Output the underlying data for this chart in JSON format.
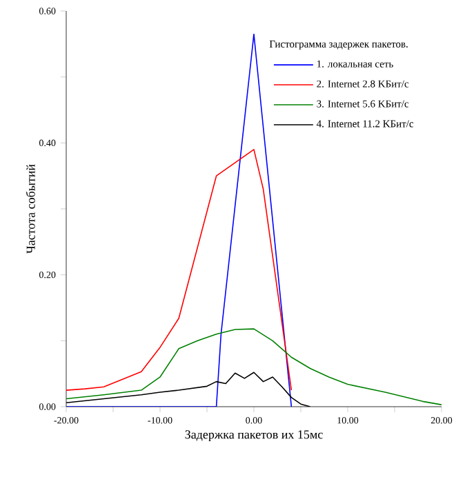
{
  "chart_data": {
    "type": "line",
    "xlabel": "Задержка пакетов их 15мс",
    "ylabel": "Частота событий",
    "legend_title": "Гистограмма задержек пакетов.",
    "legend": "top right",
    "grid": false,
    "marker": "none",
    "line_style": "solid",
    "xlim": [
      -20,
      20
    ],
    "xticks": [
      {
        "value": -20,
        "label": "-20.00"
      },
      {
        "value": -15,
        "label": null
      },
      {
        "value": -10,
        "label": "-10.00"
      },
      {
        "value": -5,
        "label": null
      },
      {
        "value": 0,
        "label": "0.00"
      },
      {
        "value": 5,
        "label": null
      },
      {
        "value": 10,
        "label": "10.00"
      },
      {
        "value": 15,
        "label": null
      },
      {
        "value": 20,
        "label": "20.00"
      }
    ],
    "ylim": [
      0,
      0.6
    ],
    "yticks": [
      {
        "value": 0,
        "label": "0.00"
      },
      {
        "value": 0.1,
        "label": null
      },
      {
        "value": 0.2,
        "label": "0.20"
      },
      {
        "value": 0.3,
        "label": null
      },
      {
        "value": 0.4,
        "label": "0.40"
      },
      {
        "value": 0.5,
        "label": null
      },
      {
        "value": 0.6,
        "label": "0.60"
      }
    ],
    "series": [
      {
        "name": "1. локальная сеть",
        "color": "#0000ff",
        "x": [
          -20,
          -4,
          -3.5,
          0,
          4
        ],
        "values": [
          0,
          0,
          0.11,
          0.565,
          0
        ]
      },
      {
        "name": "2. Internet 2.8 KБит/с",
        "color": "#ff0000",
        "x": [
          -20,
          -18,
          -16,
          -12,
          -10,
          -8,
          -4,
          0,
          1,
          4
        ],
        "values": [
          0.025,
          0.027,
          0.03,
          0.053,
          0.09,
          0.134,
          0.35,
          0.39,
          0.33,
          0.025
        ]
      },
      {
        "name": "3. Internet 5.6 KБит/с",
        "color": "#008000",
        "x": [
          -20,
          -16,
          -12,
          -10,
          -8,
          -6,
          -4,
          -2,
          0,
          2,
          4,
          6,
          8,
          10,
          14,
          18,
          20
        ],
        "values": [
          0.012,
          0.018,
          0.025,
          0.045,
          0.088,
          0.1,
          0.11,
          0.117,
          0.118,
          0.1,
          0.075,
          0.058,
          0.045,
          0.034,
          0.022,
          0.008,
          0.003
        ]
      },
      {
        "name": "4. Internet 11.2 KБит/с",
        "color": "#000000",
        "x": [
          -20,
          -16,
          -12,
          -10,
          -8,
          -5,
          -4,
          -3,
          -2,
          -1,
          0,
          1,
          2,
          3,
          4,
          5,
          6
        ],
        "values": [
          0.006,
          0.012,
          0.018,
          0.022,
          0.025,
          0.031,
          0.038,
          0.035,
          0.051,
          0.043,
          0.052,
          0.038,
          0.045,
          0.03,
          0.014,
          0.004,
          0
        ]
      }
    ]
  }
}
